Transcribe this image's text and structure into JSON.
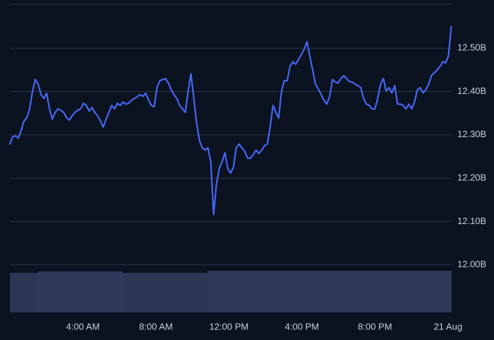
{
  "chart_data": {
    "type": "line",
    "color": "#4566f2",
    "grid": true,
    "ylim": [
      11.89,
      12.6
    ],
    "yticks": [
      {
        "value": 12.0,
        "label": "12.00B"
      },
      {
        "value": 12.1,
        "label": "12.10B"
      },
      {
        "value": 12.2,
        "label": "12.20B"
      },
      {
        "value": 12.3,
        "label": "12.30B"
      },
      {
        "value": 12.4,
        "label": "12.40B"
      },
      {
        "value": 12.5,
        "label": "12.50B"
      }
    ],
    "xlim": [
      0,
      24.2
    ],
    "xticks": [
      {
        "value": 4,
        "label": "4:00 AM"
      },
      {
        "value": 8,
        "label": "8:00 AM"
      },
      {
        "value": 12,
        "label": "12:00 PM"
      },
      {
        "value": 16,
        "label": "4:00 PM"
      },
      {
        "value": 20,
        "label": "8:00 PM"
      },
      {
        "value": 24,
        "label": "21 Aug"
      }
    ],
    "x": [
      0,
      0.155,
      0.31,
      0.465,
      0.62,
      0.775,
      0.93,
      1.085,
      1.24,
      1.395,
      1.55,
      1.705,
      1.86,
      2.015,
      2.17,
      2.325,
      2.48,
      2.635,
      2.79,
      2.945,
      3.1,
      3.255,
      3.41,
      3.565,
      3.72,
      3.875,
      4.03,
      4.185,
      4.34,
      4.495,
      4.65,
      4.805,
      4.96,
      5.115,
      5.27,
      5.425,
      5.58,
      5.735,
      5.89,
      6.045,
      6.2,
      6.355,
      6.51,
      6.665,
      6.82,
      6.975,
      7.13,
      7.285,
      7.44,
      7.595,
      7.75,
      7.905,
      8.06,
      8.215,
      8.37,
      8.525,
      8.68,
      8.835,
      8.99,
      9.145,
      9.3,
      9.455,
      9.61,
      9.765,
      9.92,
      10.075,
      10.23,
      10.385,
      10.54,
      10.695,
      10.85,
      11.005,
      11.16,
      11.315,
      11.47,
      11.625,
      11.78,
      11.935,
      12.09,
      12.245,
      12.4,
      12.555,
      12.71,
      12.865,
      13.02,
      13.175,
      13.33,
      13.485,
      13.64,
      13.795,
      13.95,
      14.105,
      14.26,
      14.415,
      14.57,
      14.725,
      14.88,
      15.035,
      15.19,
      15.345,
      15.5,
      15.655,
      15.81,
      15.965,
      16.12,
      16.275,
      16.43,
      16.585,
      16.74,
      16.895,
      17.05,
      17.205,
      17.36,
      17.515,
      17.67,
      17.825,
      17.98,
      18.135,
      18.29,
      18.445,
      18.6,
      18.755,
      18.91,
      19.065,
      19.22,
      19.375,
      19.53,
      19.685,
      19.84,
      19.995,
      20.15,
      20.305,
      20.46,
      20.615,
      20.77,
      20.925,
      21.08,
      21.235,
      21.39,
      21.545,
      21.7,
      21.855,
      22.01,
      22.165,
      22.32,
      22.475,
      22.63,
      22.785,
      22.94,
      23.095,
      23.25,
      23.405,
      23.56,
      23.715,
      23.87,
      24.025,
      24.18
    ],
    "values": [
      12.279,
      12.295,
      12.298,
      12.292,
      12.311,
      12.332,
      12.34,
      12.36,
      12.401,
      12.428,
      12.417,
      12.393,
      12.384,
      12.396,
      12.36,
      12.336,
      12.352,
      12.36,
      12.357,
      12.352,
      12.34,
      12.334,
      12.344,
      12.352,
      12.357,
      12.36,
      12.373,
      12.368,
      12.355,
      12.363,
      12.352,
      12.344,
      12.332,
      12.318,
      12.336,
      12.352,
      12.368,
      12.36,
      12.373,
      12.368,
      12.376,
      12.371,
      12.373,
      12.38,
      12.384,
      12.388,
      12.393,
      12.389,
      12.396,
      12.381,
      12.368,
      12.365,
      12.409,
      12.425,
      12.428,
      12.43,
      12.42,
      12.404,
      12.393,
      12.384,
      12.368,
      12.36,
      12.352,
      12.401,
      12.441,
      12.384,
      12.327,
      12.287,
      12.27,
      12.265,
      12.27,
      12.238,
      12.116,
      12.186,
      12.222,
      12.238,
      12.259,
      12.222,
      12.212,
      12.225,
      12.27,
      12.279,
      12.27,
      12.262,
      12.246,
      12.246,
      12.254,
      12.265,
      12.257,
      12.265,
      12.275,
      12.279,
      12.319,
      12.368,
      12.352,
      12.339,
      12.401,
      12.425,
      12.425,
      12.458,
      12.469,
      12.463,
      12.474,
      12.485,
      12.498,
      12.515,
      12.482,
      12.45,
      12.417,
      12.406,
      12.393,
      12.38,
      12.371,
      12.388,
      12.428,
      12.422,
      12.42,
      12.43,
      12.437,
      12.43,
      12.423,
      12.422,
      12.417,
      12.414,
      12.409,
      12.384,
      12.371,
      12.368,
      12.36,
      12.36,
      12.384,
      12.417,
      12.43,
      12.401,
      12.409,
      12.397,
      12.414,
      12.371,
      12.371,
      12.368,
      12.36,
      12.371,
      12.36,
      12.376,
      12.404,
      12.409,
      12.397,
      12.404,
      12.417,
      12.437,
      12.443,
      12.45,
      12.458,
      12.469,
      12.466,
      12.482,
      12.55
    ]
  }
}
